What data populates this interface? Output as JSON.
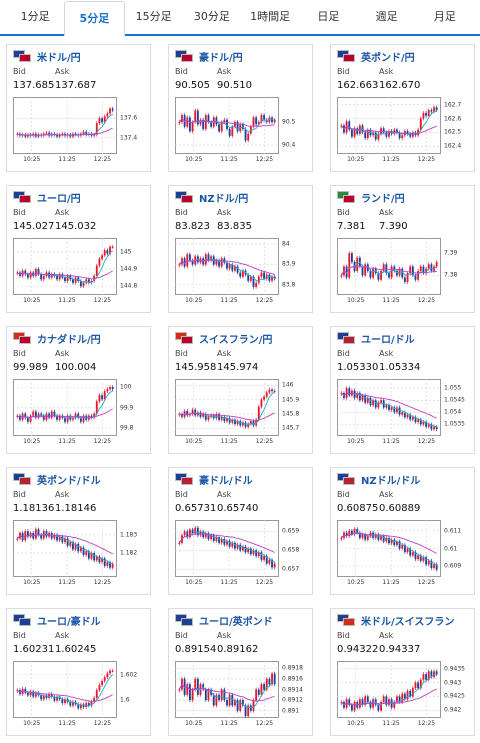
{
  "tabs": [
    {
      "label": "1分足",
      "active": false
    },
    {
      "label": "5分足",
      "active": true
    },
    {
      "label": "15分足",
      "active": false
    },
    {
      "label": "30分足",
      "active": false
    },
    {
      "label": "1時間足",
      "active": false
    },
    {
      "label": "日足",
      "active": false
    },
    {
      "label": "週足",
      "active": false
    },
    {
      "label": "月足",
      "active": false
    }
  ],
  "labels": {
    "bid": "Bid",
    "ask": "Ask"
  },
  "colors": {
    "up": "#e8182a",
    "down": "#1f3f9e",
    "ma_short": "#2aa7c9",
    "ma_long": "#c040c8",
    "grid": "#d4d4d4",
    "link": "#1a56a6"
  },
  "chart_data": [
    {
      "type": "line",
      "pair": "米ドル/円",
      "flags": [
        "#1c3f94",
        "#bc002d"
      ],
      "bid": "137.685",
      "ask": "137.687",
      "x_ticks": [
        "10:25",
        "11:25",
        "12:25"
      ],
      "y_ticks": [
        "137.6",
        "137.4"
      ],
      "ylim": [
        137.25,
        137.8
      ],
      "close": [
        137.44,
        137.42,
        137.43,
        137.41,
        137.43,
        137.42,
        137.44,
        137.41,
        137.43,
        137.42,
        137.44,
        137.45,
        137.42,
        137.44,
        137.43,
        137.41,
        137.43,
        137.44,
        137.42,
        137.43,
        137.41,
        137.44,
        137.43,
        137.42,
        137.44,
        137.46,
        137.43,
        137.44,
        137.42,
        137.43,
        137.55,
        137.6,
        137.56,
        137.62,
        137.65,
        137.7,
        137.68
      ]
    },
    {
      "type": "line",
      "pair": "豪ドル/円",
      "flags": [
        "#1c3f94",
        "#bc002d"
      ],
      "bid": "90.505",
      "ask": "90.510",
      "x_ticks": [
        "10:25",
        "11:25",
        "12:25"
      ],
      "y_ticks": [
        "90.5",
        "90.4"
      ],
      "ylim": [
        90.37,
        90.6
      ],
      "close": [
        90.5,
        90.53,
        90.48,
        90.52,
        90.46,
        90.5,
        90.55,
        90.49,
        90.51,
        90.47,
        90.53,
        90.5,
        90.48,
        90.52,
        90.49,
        90.46,
        90.5,
        90.51,
        90.47,
        90.44,
        90.48,
        90.5,
        90.46,
        90.49,
        90.47,
        90.42,
        90.45,
        90.48,
        90.52,
        90.49,
        90.5,
        90.53,
        90.51,
        90.5,
        90.52,
        90.5,
        90.51
      ]
    },
    {
      "type": "line",
      "pair": "英ポンド/円",
      "flags": [
        "#1c3f94",
        "#bc002d"
      ],
      "bid": "162.663",
      "ask": "162.670",
      "x_ticks": [
        "10:25",
        "11:25",
        "12:25"
      ],
      "y_ticks": [
        "162.7",
        "162.6",
        "162.5",
        "162.4"
      ],
      "ylim": [
        162.36,
        162.74
      ],
      "close": [
        162.55,
        162.5,
        162.58,
        162.52,
        162.47,
        162.53,
        162.49,
        162.55,
        162.5,
        162.46,
        162.52,
        162.48,
        162.5,
        162.45,
        162.49,
        162.53,
        162.5,
        162.47,
        162.51,
        162.49,
        162.52,
        162.5,
        162.46,
        162.48,
        162.51,
        162.49,
        162.47,
        162.5,
        162.48,
        162.52,
        162.6,
        162.64,
        162.62,
        162.66,
        162.65,
        162.68,
        162.66
      ]
    },
    {
      "type": "line",
      "pair": "ユーロ/円",
      "flags": [
        "#1c3f94",
        "#bc002d"
      ],
      "bid": "145.027",
      "ask": "145.032",
      "x_ticks": [
        "10:25",
        "11:25",
        "12:25"
      ],
      "y_ticks": [
        "145",
        "144.9",
        "144.8"
      ],
      "ylim": [
        144.76,
        145.07
      ],
      "close": [
        144.88,
        144.86,
        144.89,
        144.87,
        144.85,
        144.88,
        144.86,
        144.9,
        144.87,
        144.84,
        144.86,
        144.88,
        144.85,
        144.87,
        144.86,
        144.84,
        144.87,
        144.85,
        144.83,
        144.86,
        144.84,
        144.82,
        144.85,
        144.83,
        144.8,
        144.82,
        144.84,
        144.82,
        144.83,
        144.86,
        144.92,
        144.96,
        144.98,
        145.01,
        144.99,
        145.03,
        145.03
      ]
    },
    {
      "type": "line",
      "pair": "NZドル/円",
      "flags": [
        "#1c3f94",
        "#bc002d"
      ],
      "bid": "83.823",
      "ask": "83.835",
      "x_ticks": [
        "10:25",
        "11:25",
        "12:25"
      ],
      "y_ticks": [
        "84",
        "83.9",
        "83.8"
      ],
      "ylim": [
        83.76,
        84.02
      ],
      "close": [
        83.9,
        83.93,
        83.89,
        83.95,
        83.92,
        83.9,
        83.94,
        83.91,
        83.93,
        83.9,
        83.95,
        83.92,
        83.94,
        83.9,
        83.92,
        83.89,
        83.93,
        83.91,
        83.88,
        83.9,
        83.87,
        83.89,
        83.86,
        83.84,
        83.87,
        83.85,
        83.82,
        83.84,
        83.79,
        83.81,
        83.84,
        83.86,
        83.83,
        83.85,
        83.82,
        83.84,
        83.83
      ]
    },
    {
      "type": "line",
      "pair": "ランド/円",
      "flags": [
        "#2a8a3a",
        "#bc002d"
      ],
      "bid": "7.381",
      "ask": "7.390",
      "x_ticks": [
        "10:25",
        "11:25",
        "12:25"
      ],
      "y_ticks": [
        "7.39",
        "7.38"
      ],
      "ylim": [
        7.372,
        7.396
      ],
      "close": [
        7.38,
        7.384,
        7.379,
        7.39,
        7.386,
        7.382,
        7.388,
        7.384,
        7.38,
        7.385,
        7.382,
        7.379,
        7.383,
        7.381,
        7.378,
        7.382,
        7.385,
        7.381,
        7.379,
        7.384,
        7.382,
        7.38,
        7.383,
        7.379,
        7.377,
        7.381,
        7.384,
        7.38,
        7.378,
        7.382,
        7.384,
        7.381,
        7.383,
        7.385,
        7.382,
        7.384,
        7.386
      ]
    },
    {
      "type": "line",
      "pair": "カナダドル/円",
      "flags": [
        "#d52b1e",
        "#bc002d"
      ],
      "bid": "99.989",
      "ask": "100.004",
      "x_ticks": [
        "10:25",
        "11:25",
        "12:25"
      ],
      "y_ticks": [
        "100",
        "99.9",
        "99.8"
      ],
      "ylim": [
        99.77,
        100.03
      ],
      "close": [
        99.86,
        99.84,
        99.87,
        99.85,
        99.83,
        99.86,
        99.88,
        99.85,
        99.87,
        99.86,
        99.84,
        99.87,
        99.85,
        99.88,
        99.86,
        99.84,
        99.86,
        99.85,
        99.83,
        99.86,
        99.84,
        99.85,
        99.87,
        99.85,
        99.83,
        99.86,
        99.84,
        99.86,
        99.85,
        99.87,
        99.93,
        99.96,
        99.94,
        99.98,
        99.99,
        100.0,
        99.99
      ]
    },
    {
      "type": "line",
      "pair": "スイスフラン/円",
      "flags": [
        "#d52b1e",
        "#bc002d"
      ],
      "bid": "145.958",
      "ask": "145.974",
      "x_ticks": [
        "10:25",
        "11:25",
        "12:25"
      ],
      "y_ticks": [
        "146",
        "145.9",
        "145.8",
        "145.7"
      ],
      "ylim": [
        145.66,
        146.03
      ],
      "close": [
        145.8,
        145.78,
        145.82,
        145.79,
        145.8,
        145.83,
        145.79,
        145.81,
        145.78,
        145.8,
        145.76,
        145.78,
        145.79,
        145.77,
        145.8,
        145.76,
        145.78,
        145.75,
        145.77,
        145.74,
        145.76,
        145.73,
        145.75,
        145.72,
        145.74,
        145.71,
        145.73,
        145.75,
        145.72,
        145.76,
        145.85,
        145.9,
        145.92,
        145.95,
        145.97,
        145.96,
        145.96
      ]
    },
    {
      "type": "line",
      "pair": "ユーロ/ドル",
      "flags": [
        "#1c3f94",
        "#b22234"
      ],
      "bid": "1.05330",
      "ask": "1.05334",
      "x_ticks": [
        "10:25",
        "11:25",
        "12:25"
      ],
      "y_ticks": [
        "1.055",
        "1.0545",
        "1.054",
        "1.0535"
      ],
      "ylim": [
        1.0531,
        1.0553
      ],
      "close": [
        1.0548,
        1.0546,
        1.055,
        1.0547,
        1.0549,
        1.0546,
        1.0548,
        1.0545,
        1.0547,
        1.0544,
        1.0546,
        1.0543,
        1.0545,
        1.0542,
        1.0544,
        1.0545,
        1.0542,
        1.0543,
        1.0541,
        1.0542,
        1.054,
        1.0542,
        1.0539,
        1.054,
        1.0538,
        1.0539,
        1.0537,
        1.0538,
        1.0536,
        1.0537,
        1.0535,
        1.0536,
        1.0534,
        1.0535,
        1.0533,
        1.0534,
        1.0533
      ]
    },
    {
      "type": "line",
      "pair": "英ポンド/ドル",
      "flags": [
        "#1c3f94",
        "#b22234"
      ],
      "bid": "1.18136",
      "ask": "1.18146",
      "x_ticks": [
        "10:25",
        "11:25",
        "12:25"
      ],
      "y_ticks": [
        "1.183",
        "1.182"
      ],
      "ylim": [
        1.1808,
        1.1837
      ],
      "close": [
        1.1828,
        1.1831,
        1.1827,
        1.1832,
        1.1829,
        1.1831,
        1.1828,
        1.1833,
        1.183,
        1.1828,
        1.1832,
        1.1829,
        1.1831,
        1.1828,
        1.183,
        1.1827,
        1.1829,
        1.1826,
        1.1828,
        1.1824,
        1.1826,
        1.1822,
        1.1825,
        1.1821,
        1.1823,
        1.1819,
        1.1821,
        1.1817,
        1.182,
        1.1816,
        1.1818,
        1.1815,
        1.1817,
        1.1813,
        1.1815,
        1.1812,
        1.1814
      ]
    },
    {
      "type": "line",
      "pair": "豪ドル/ドル",
      "flags": [
        "#1c3f94",
        "#b22234"
      ],
      "bid": "0.65731",
      "ask": "0.65740",
      "x_ticks": [
        "10:25",
        "11:25",
        "12:25"
      ],
      "y_ticks": [
        "0.659",
        "0.658",
        "0.657"
      ],
      "ylim": [
        0.6567,
        0.6595
      ],
      "close": [
        0.6584,
        0.6588,
        0.659,
        0.6587,
        0.6591,
        0.6589,
        0.6592,
        0.6588,
        0.659,
        0.6587,
        0.6589,
        0.6586,
        0.6588,
        0.6585,
        0.6587,
        0.6584,
        0.6586,
        0.6583,
        0.6585,
        0.6582,
        0.6584,
        0.6581,
        0.6583,
        0.658,
        0.6582,
        0.6579,
        0.6581,
        0.6578,
        0.658,
        0.6577,
        0.6579,
        0.6575,
        0.6577,
        0.6573,
        0.6575,
        0.6571,
        0.6573
      ]
    },
    {
      "type": "line",
      "pair": "NZドル/ドル",
      "flags": [
        "#1c3f94",
        "#b22234"
      ],
      "bid": "0.60875",
      "ask": "0.60889",
      "x_ticks": [
        "10:25",
        "11:25",
        "12:25"
      ],
      "y_ticks": [
        "0.611",
        "0.61",
        "0.609"
      ],
      "ylim": [
        0.6085,
        0.6115
      ],
      "close": [
        0.6106,
        0.6109,
        0.6107,
        0.611,
        0.6108,
        0.6111,
        0.6109,
        0.6106,
        0.6108,
        0.6105,
        0.6107,
        0.6109,
        0.6106,
        0.6108,
        0.6105,
        0.6107,
        0.6104,
        0.6106,
        0.6103,
        0.6105,
        0.6102,
        0.6104,
        0.61,
        0.6102,
        0.6098,
        0.61,
        0.6096,
        0.6098,
        0.6094,
        0.6096,
        0.6093,
        0.6095,
        0.6091,
        0.6093,
        0.6089,
        0.6091,
        0.6088
      ]
    },
    {
      "type": "line",
      "pair": "ユーロ/豪ドル",
      "flags": [
        "#1c3f94",
        "#1c3f94"
      ],
      "bid": "1.60231",
      "ask": "1.60245",
      "x_ticks": [
        "10:25",
        "11:25",
        "12:25"
      ],
      "y_ticks": [
        "1.602",
        "1.6"
      ],
      "ylim": [
        1.5988,
        1.6029
      ],
      "close": [
        1.6008,
        1.6005,
        1.6009,
        1.6006,
        1.6004,
        1.6007,
        1.6003,
        1.6006,
        1.6004,
        1.6001,
        1.6004,
        1.6002,
        1.6005,
        1.6003,
        1.6,
        1.6003,
        1.6001,
        1.5998,
        1.6001,
        1.5999,
        1.5996,
        1.5999,
        1.5997,
        1.5994,
        1.5997,
        1.5995,
        1.5998,
        1.5996,
        1.5999,
        1.6002,
        1.6008,
        1.6012,
        1.6015,
        1.6018,
        1.6021,
        1.6023,
        1.6023
      ]
    },
    {
      "type": "line",
      "pair": "ユーロ/英ポンド",
      "flags": [
        "#1c3f94",
        "#1c3f94"
      ],
      "bid": "0.89154",
      "ask": "0.89162",
      "x_ticks": [
        "10:25",
        "11:25",
        "12:25"
      ],
      "y_ticks": [
        "0.8918",
        "0.8916",
        "0.8914",
        "0.8912",
        "0.891"
      ],
      "ylim": [
        0.8909,
        0.8919
      ],
      "close": [
        0.8914,
        0.8916,
        0.8913,
        0.8915,
        0.8912,
        0.8914,
        0.8916,
        0.8913,
        0.8915,
        0.8914,
        0.8912,
        0.8914,
        0.8913,
        0.8911,
        0.8913,
        0.8912,
        0.8914,
        0.8912,
        0.8911,
        0.8913,
        0.8911,
        0.8912,
        0.891,
        0.8912,
        0.8911,
        0.8909,
        0.8911,
        0.891,
        0.8912,
        0.8914,
        0.8913,
        0.8915,
        0.8914,
        0.8916,
        0.8915,
        0.8917,
        0.8915
      ]
    },
    {
      "type": "line",
      "pair": "米ドル/スイスフラン",
      "flags": [
        "#1c3f94",
        "#d52b1e"
      ],
      "bid": "0.94322",
      "ask": "0.94337",
      "x_ticks": [
        "10:25",
        "11:25",
        "12:25"
      ],
      "y_ticks": [
        "0.9435",
        "0.943",
        "0.9425",
        "0.942"
      ],
      "ylim": [
        0.9418,
        0.9437
      ],
      "close": [
        0.9423,
        0.9421,
        0.9424,
        0.9422,
        0.942,
        0.9423,
        0.9421,
        0.9424,
        0.9422,
        0.9425,
        0.9423,
        0.9421,
        0.9424,
        0.9422,
        0.942,
        0.9423,
        0.9425,
        0.9422,
        0.9424,
        0.9421,
        0.9423,
        0.9425,
        0.9423,
        0.9426,
        0.9424,
        0.9427,
        0.9425,
        0.9428,
        0.943,
        0.9428,
        0.9431,
        0.9433,
        0.9431,
        0.9434,
        0.9432,
        0.9434,
        0.9433
      ]
    }
  ]
}
